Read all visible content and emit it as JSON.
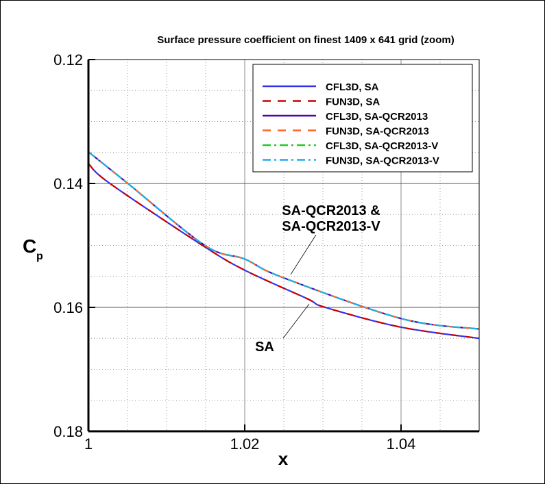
{
  "chart_data": {
    "type": "line",
    "title": "Surface pressure coefficient on finest 1409 x 641 grid (zoom)",
    "xlabel": "x",
    "ylabel": "C",
    "ylabel_subscript": "p",
    "xlim": [
      1,
      1.05
    ],
    "ylim": [
      0.18,
      0.12
    ],
    "y_inverted": true,
    "grid": true,
    "legend_position": "top-right",
    "x_ticks": [
      1,
      1.02,
      1.04
    ],
    "x_tick_labels": [
      "1",
      "1.02",
      "1.04"
    ],
    "y_ticks": [
      0.12,
      0.14,
      0.16,
      0.18
    ],
    "y_tick_labels": [
      "0.12",
      "0.14",
      "0.16",
      "0.18"
    ],
    "series": [
      {
        "name": "CFL3D, SA",
        "color": "#3333ee",
        "dash": "solid",
        "x": [
          1,
          1.00275,
          1.0146,
          1.02,
          1.028,
          1.0303,
          1.04,
          1.05
        ],
        "y": [
          0.1368,
          0.14,
          0.15,
          0.154,
          0.1586,
          0.16,
          0.1632,
          0.165
        ]
      },
      {
        "name": "FUN3D, SA",
        "color": "#cc0000",
        "dash": "dashed",
        "x": [
          1,
          1.00275,
          1.0146,
          1.02,
          1.028,
          1.0303,
          1.04,
          1.05
        ],
        "y": [
          0.1368,
          0.14,
          0.15,
          0.154,
          0.1586,
          0.16,
          0.1632,
          0.165
        ]
      },
      {
        "name": "CFL3D, SA-QCR2013",
        "color": "#5500aa",
        "dash": "solid",
        "x": [
          1,
          1.00505,
          1.0149,
          1.02,
          1.0247,
          1.04,
          1.05
        ],
        "y": [
          0.1349,
          0.14,
          0.15,
          0.1522,
          0.1551,
          0.1618,
          0.1635
        ]
      },
      {
        "name": "FUN3D, SA-QCR2013",
        "color": "#ff6622",
        "dash": "dashed",
        "x": [
          1,
          1.00505,
          1.0149,
          1.02,
          1.0247,
          1.04,
          1.05
        ],
        "y": [
          0.1349,
          0.14,
          0.15,
          0.1522,
          0.1551,
          0.1618,
          0.1635
        ]
      },
      {
        "name": "CFL3D, SA-QCR2013-V",
        "color": "#22cc22",
        "dash": "dashdot",
        "x": [
          1,
          1.00505,
          1.0149,
          1.02,
          1.0247,
          1.04,
          1.05
        ],
        "y": [
          0.1349,
          0.14,
          0.15,
          0.1522,
          0.1551,
          0.1618,
          0.1635
        ]
      },
      {
        "name": "FUN3D, SA-QCR2013-V",
        "color": "#22aaee",
        "dash": "dashdot",
        "x": [
          1,
          1.00505,
          1.0149,
          1.02,
          1.0247,
          1.04,
          1.05
        ],
        "y": [
          0.1349,
          0.14,
          0.15,
          0.1522,
          0.1551,
          0.1618,
          0.1635
        ]
      }
    ],
    "annotations": [
      {
        "lines": [
          "SA-QCR2013 &",
          "SA-QCR2013-V"
        ]
      },
      {
        "lines": [
          "SA"
        ]
      }
    ]
  }
}
